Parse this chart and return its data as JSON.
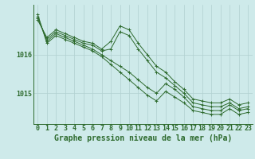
{
  "background_color": "#ceeaea",
  "grid_color": "#b0d0d0",
  "line_color": "#2d6a2d",
  "xlabel": "Graphe pression niveau de la mer (hPa)",
  "xlabel_fontsize": 7,
  "tick_fontsize": 6,
  "ytick_labels": [
    1015,
    1016
  ],
  "ylim": [
    1014.2,
    1017.3
  ],
  "xlim": [
    -0.5,
    23.5
  ],
  "xticks": [
    0,
    1,
    2,
    3,
    4,
    5,
    6,
    7,
    8,
    9,
    10,
    11,
    12,
    13,
    14,
    15,
    16,
    17,
    18,
    19,
    20,
    21,
    22,
    23
  ],
  "series": [
    [
      1016.9,
      1016.45,
      1016.65,
      1016.55,
      1016.45,
      1016.35,
      1016.3,
      1016.15,
      1016.35,
      1016.75,
      1016.65,
      1016.3,
      1016.0,
      1015.7,
      1015.55,
      1015.3,
      1015.1,
      1014.85,
      1014.8,
      1014.75,
      1014.75,
      1014.85,
      1014.7,
      1014.75
    ],
    [
      1016.95,
      1016.4,
      1016.6,
      1016.5,
      1016.4,
      1016.3,
      1016.25,
      1016.1,
      1016.15,
      1016.6,
      1016.5,
      1016.15,
      1015.85,
      1015.55,
      1015.4,
      1015.2,
      1015.0,
      1014.75,
      1014.7,
      1014.65,
      1014.65,
      1014.75,
      1014.6,
      1014.65
    ],
    [
      1017.0,
      1016.35,
      1016.55,
      1016.45,
      1016.35,
      1016.25,
      1016.15,
      1016.0,
      1015.85,
      1015.7,
      1015.55,
      1015.35,
      1015.15,
      1015.0,
      1015.25,
      1015.1,
      1014.9,
      1014.65,
      1014.6,
      1014.55,
      1014.55,
      1014.7,
      1014.55,
      1014.6
    ],
    [
      1017.05,
      1016.3,
      1016.5,
      1016.4,
      1016.3,
      1016.2,
      1016.1,
      1015.95,
      1015.75,
      1015.55,
      1015.35,
      1015.15,
      1014.95,
      1014.8,
      1015.05,
      1014.9,
      1014.75,
      1014.55,
      1014.5,
      1014.45,
      1014.45,
      1014.6,
      1014.45,
      1014.5
    ]
  ]
}
